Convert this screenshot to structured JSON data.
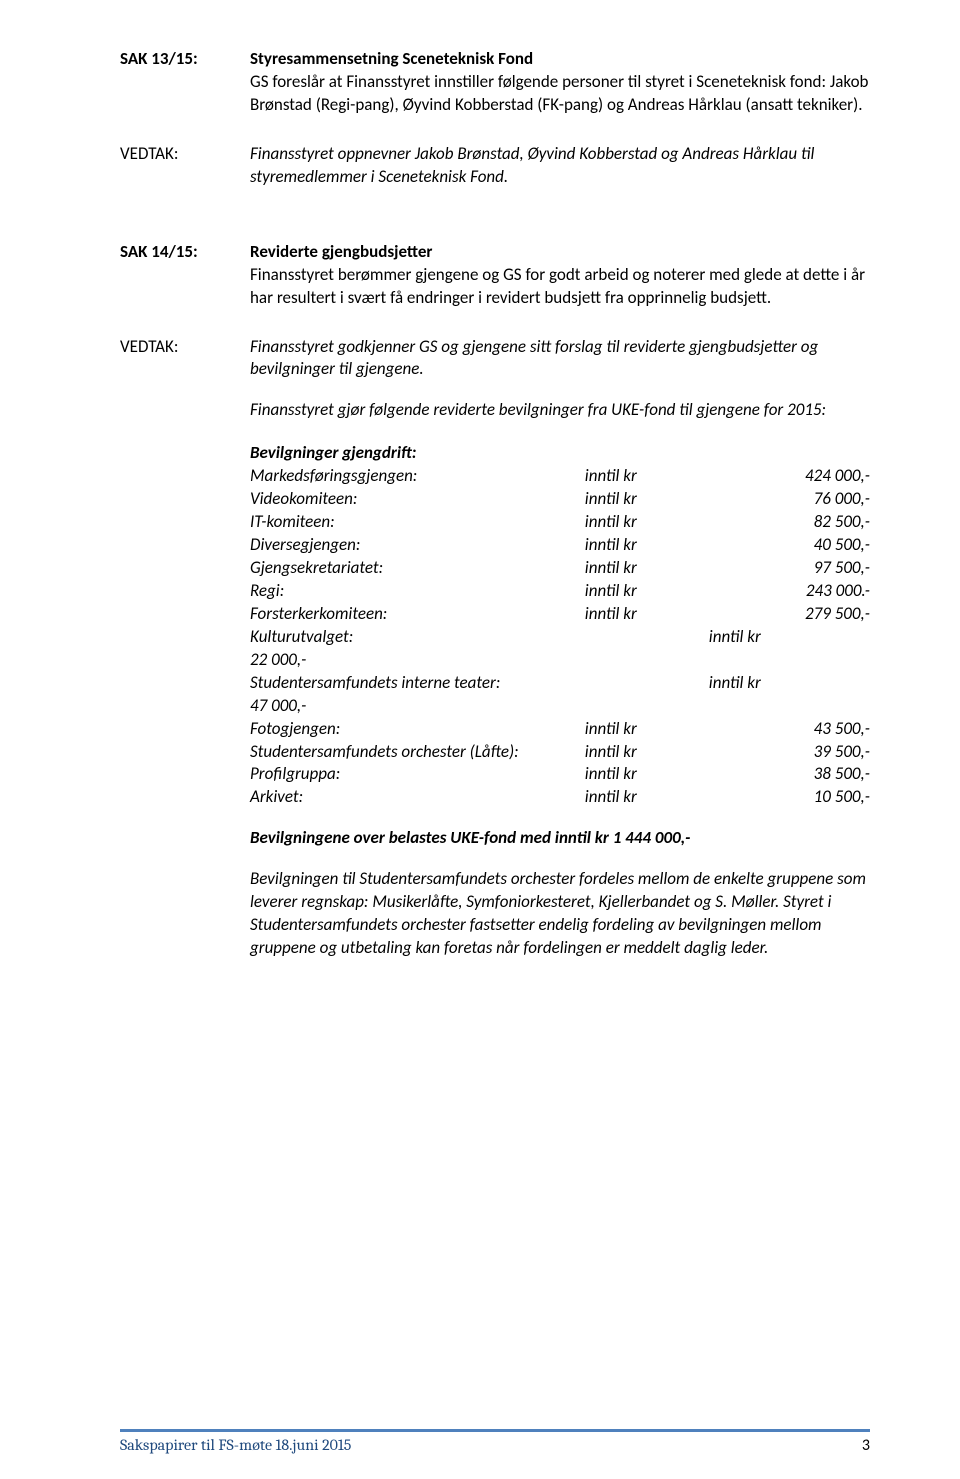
{
  "sak13": {
    "label": "SAK 13/15:",
    "title": "Styresammensetning Sceneteknisk Fond",
    "body": "GS foreslår at Finansstyret innstiller følgende personer til styret i Sceneteknisk fond: Jakob Brønstad (Regi-pang), Øyvind Kobberstad (FK-pang) og Andreas Hårklau (ansatt tekniker)."
  },
  "vedtak13": {
    "label": "VEDTAK:",
    "body": "Finansstyret oppnevner Jakob Brønstad, Øyvind Kobberstad og Andreas Hårklau til styremedlemmer i Sceneteknisk Fond."
  },
  "sak14": {
    "label": "SAK 14/15:",
    "title": "Reviderte gjengbudsjetter",
    "body": "Finansstyret berømmer gjengene og GS for godt arbeid og noterer med glede at dette i år har resultert i svært få endringer i revidert budsjett fra opprinnelig budsjett."
  },
  "vedtak14": {
    "label": "VEDTAK:",
    "body1": "Finansstyret godkjenner GS og gjengene sitt forslag til reviderte gjengbudsjetter og bevilgninger til gjengene.",
    "body2": "Finansstyret gjør følgende reviderte bevilgninger fra UKE-fond til gjengene for 2015:",
    "section_title": "Bevilgninger gjengdrift:",
    "rows": [
      {
        "name": "Markedsføringsgjengen:",
        "inntil": "inntil kr",
        "amount": "424 000,-"
      },
      {
        "name": "Videokomiteen:",
        "inntil": "inntil kr",
        "amount": "76 000,-"
      },
      {
        "name": "IT-komiteen:",
        "inntil": "inntil kr",
        "amount": "82 500,-"
      },
      {
        "name": "Diversegjengen:",
        "inntil": "inntil kr",
        "amount": "40 500,-"
      },
      {
        "name": "Gjengsekretariatet:",
        "inntil": "inntil kr",
        "amount": "97 500,-"
      },
      {
        "name": "Regi:",
        "inntil": "inntil kr",
        "amount": "243 000.-"
      },
      {
        "name": "Forsterkerkomiteen:",
        "inntil": "inntil kr",
        "amount": "279 500,-"
      }
    ],
    "special_rows": [
      {
        "name": "Kulturutvalget:",
        "inntil": "inntil kr",
        "next": "22 000,-"
      },
      {
        "name": "Studentersamfundets interne teater:",
        "inntil": "inntil kr",
        "next": "47 000,-"
      }
    ],
    "rows2": [
      {
        "name": "Fotogjengen:",
        "inntil": "inntil kr",
        "amount": "43 500,-"
      },
      {
        "name": "Studentersamfundets orchester (Låfte):",
        "inntil": "inntil kr",
        "amount": "39 500,-"
      },
      {
        "name": "Profilgruppa:",
        "inntil": "inntil kr",
        "amount": "38 500,-"
      },
      {
        "name": "Arkivet:",
        "inntil": "inntil kr",
        "amount": "10 500,-"
      }
    ],
    "totals_line": "Bevilgningene over belastes UKE-fond med inntil kr 1 444 000,-",
    "para": "Bevilgningen til Studentersamfundets orchester fordeles mellom de enkelte gruppene som leverer regnskap: Musikerlåfte, Symfoniorkesteret, Kjellerbandet og S. Møller. Styret i Studentersamfundets orchester fastsetter endelig fordeling av bevilgningen mellom gruppene og utbetaling kan foretas når fordelingen er meddelt daglig leder."
  },
  "footer": {
    "text": "Sakspapirer til FS-møte 18.juni 2015",
    "page": "3"
  },
  "colors": {
    "footer_line": "#4f81bd",
    "footer_text": "#1f497d"
  }
}
